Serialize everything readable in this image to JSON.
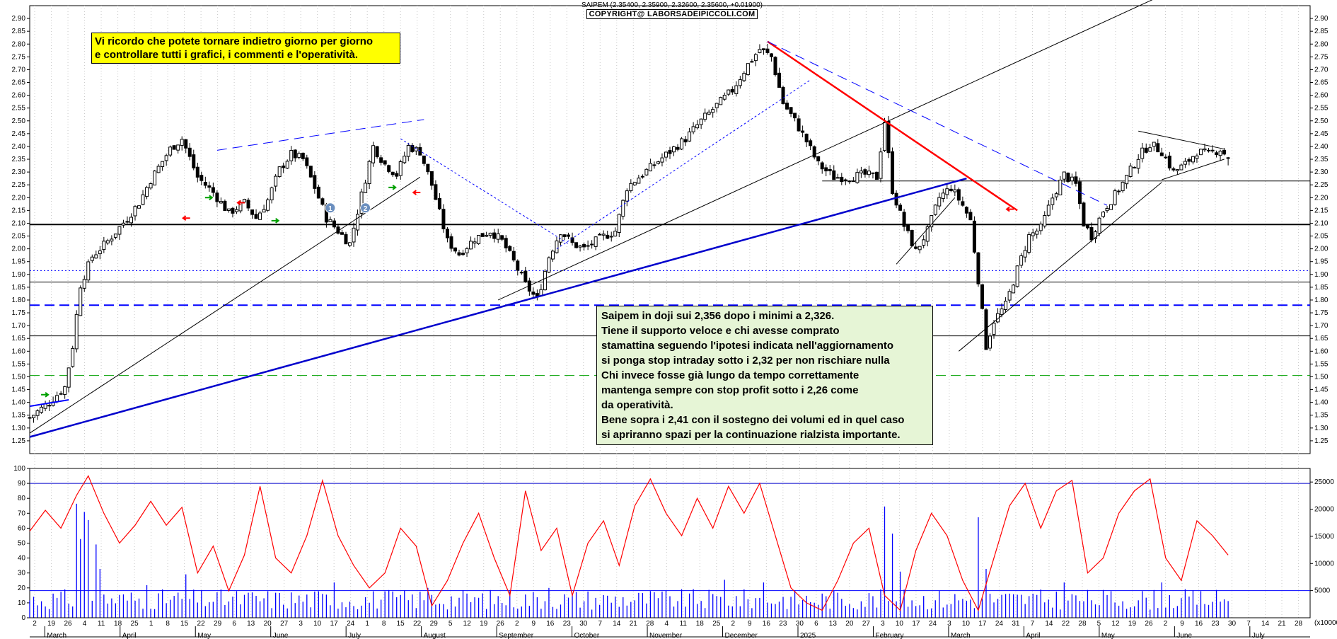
{
  "header": {
    "title": "SAIPEM (2.35400, 2.35900, 2.32600, 2.35600, +0.01900)",
    "copyright": "COPYRIGHT@ LABORSADEIPICCOLI.COM"
  },
  "notes": {
    "yellow": [
      "Vi ricordo che potete tornare indietro giorno per giorno",
      "e controllare tutti i grafici, i commenti e l'operatività."
    ],
    "green": [
      "Saipem in doji sui 2,356 dopo i minimi a 2,326.",
      "Tiene il supporto veloce e chi avesse comprato",
      "stamattina seguendo l'ipotesi indicata nell'aggiornamento",
      "si ponga stop intraday sotto i 2,32 per non rischiare nulla",
      "Chi invece fosse già lungo da tempo correttamente",
      "mantenga sempre con stop profit sotto i 2,26 come",
      "da operatività.",
      "Bene sopra i 2,41 con il sostegno dei volumi ed in quel caso",
      "si apriranno spazi per la continuazione rialzista importante."
    ]
  },
  "markers": [
    "1",
    "2"
  ],
  "colors": {
    "price": "#000000",
    "trend_blue": "#0000cc",
    "trend_red": "#ff0000",
    "dashed_blue": "#0000ff",
    "dashed_green": "#00a000",
    "oscillator": "#ff0000",
    "volume": "#0000ff",
    "marker": "#6b8fbf",
    "arrow_green": "#00a000",
    "arrow_red": "#ff0000"
  },
  "chart_data": [
    {
      "type": "candlestick",
      "ylim": [
        1.2,
        2.95
      ],
      "y_ticks": [
        "2.90",
        "2.85",
        "2.80",
        "2.75",
        "2.70",
        "2.65",
        "2.60",
        "2.55",
        "2.50",
        "2.45",
        "2.40",
        "2.35",
        "2.30",
        "2.25",
        "2.20",
        "2.15",
        "2.10",
        "2.05",
        "2.00",
        "1.95",
        "1.90",
        "1.85",
        "1.80",
        "1.75",
        "1.70",
        "1.65",
        "1.60",
        "1.55",
        "1.50",
        "1.45",
        "1.40",
        "1.35",
        "1.30",
        "1.25"
      ],
      "x_day_ticks": [
        "2",
        "19",
        "26",
        "4",
        "11",
        "18",
        "25",
        "1",
        "8",
        "15",
        "22",
        "29",
        "6",
        "13",
        "20",
        "27",
        "3",
        "10",
        "17",
        "24",
        "1",
        "8",
        "15",
        "22",
        "29",
        "5",
        "12",
        "19",
        "26",
        "2",
        "9",
        "16",
        "23",
        "30",
        "7",
        "14",
        "21",
        "28",
        "4",
        "11",
        "18",
        "25",
        "2",
        "9",
        "16",
        "23",
        "30",
        "6",
        "13",
        "20",
        "27",
        "3",
        "10",
        "17",
        "24",
        "3",
        "10",
        "17",
        "24",
        "31",
        "7",
        "14",
        "22",
        "28",
        "5",
        "12",
        "19",
        "26",
        "2",
        "9",
        "16",
        "23",
        "30",
        "7",
        "14",
        "21",
        "28"
      ],
      "x_month_labels": [
        "March",
        "April",
        "May",
        "June",
        "July",
        "August",
        "September",
        "October",
        "November",
        "December",
        "2025",
        "February",
        "March",
        "April",
        "May",
        "June",
        "July"
      ],
      "last_bar": {
        "open": 2.354,
        "high": 2.359,
        "low": 2.326,
        "close": 2.356,
        "change": 0.019
      },
      "close_path": [
        {
          "t": 0,
          "c": 1.34
        },
        {
          "t": 5,
          "c": 1.4
        },
        {
          "t": 9,
          "c": 1.46
        },
        {
          "t": 11,
          "c": 1.62
        },
        {
          "t": 13,
          "c": 1.86
        },
        {
          "t": 16,
          "c": 1.97
        },
        {
          "t": 20,
          "c": 2.03
        },
        {
          "t": 25,
          "c": 2.12
        },
        {
          "t": 28,
          "c": 2.18
        },
        {
          "t": 31,
          "c": 2.27
        },
        {
          "t": 36,
          "c": 2.39
        },
        {
          "t": 39,
          "c": 2.43
        },
        {
          "t": 43,
          "c": 2.28
        },
        {
          "t": 47,
          "c": 2.22
        },
        {
          "t": 51,
          "c": 2.14
        },
        {
          "t": 55,
          "c": 2.18
        },
        {
          "t": 58,
          "c": 2.12
        },
        {
          "t": 61,
          "c": 2.19
        },
        {
          "t": 64,
          "c": 2.31
        },
        {
          "t": 67,
          "c": 2.37
        },
        {
          "t": 70,
          "c": 2.35
        },
        {
          "t": 73,
          "c": 2.24
        },
        {
          "t": 76,
          "c": 2.12
        },
        {
          "t": 79,
          "c": 2.07
        },
        {
          "t": 82,
          "c": 2.02
        },
        {
          "t": 85,
          "c": 2.21
        },
        {
          "t": 88,
          "c": 2.4
        },
        {
          "t": 91,
          "c": 2.33
        },
        {
          "t": 94,
          "c": 2.29
        },
        {
          "t": 97,
          "c": 2.4
        },
        {
          "t": 100,
          "c": 2.38
        },
        {
          "t": 103,
          "c": 2.25
        },
        {
          "t": 105,
          "c": 2.14
        },
        {
          "t": 107,
          "c": 2.03
        },
        {
          "t": 110,
          "c": 1.98
        },
        {
          "t": 114,
          "c": 2.04
        },
        {
          "t": 118,
          "c": 2.07
        },
        {
          "t": 121,
          "c": 2.03
        },
        {
          "t": 124,
          "c": 1.95
        },
        {
          "t": 127,
          "c": 1.86
        },
        {
          "t": 130,
          "c": 1.8
        },
        {
          "t": 133,
          "c": 1.97
        },
        {
          "t": 136,
          "c": 2.07
        },
        {
          "t": 139,
          "c": 2.02
        },
        {
          "t": 142,
          "c": 2.0
        },
        {
          "t": 146,
          "c": 2.04
        },
        {
          "t": 150,
          "c": 2.07
        },
        {
          "t": 153,
          "c": 2.24
        },
        {
          "t": 156,
          "c": 2.28
        },
        {
          "t": 160,
          "c": 2.33
        },
        {
          "t": 164,
          "c": 2.38
        },
        {
          "t": 168,
          "c": 2.43
        },
        {
          "t": 172,
          "c": 2.5
        },
        {
          "t": 176,
          "c": 2.56
        },
        {
          "t": 180,
          "c": 2.62
        },
        {
          "t": 184,
          "c": 2.72
        },
        {
          "t": 187,
          "c": 2.78
        },
        {
          "t": 190,
          "c": 2.75
        },
        {
          "t": 193,
          "c": 2.57
        },
        {
          "t": 196,
          "c": 2.5
        },
        {
          "t": 199,
          "c": 2.42
        },
        {
          "t": 202,
          "c": 2.33
        },
        {
          "t": 206,
          "c": 2.28
        },
        {
          "t": 210,
          "c": 2.28
        },
        {
          "t": 214,
          "c": 2.29
        },
        {
          "t": 217,
          "c": 2.28
        },
        {
          "t": 219,
          "c": 2.5
        },
        {
          "t": 221,
          "c": 2.23
        },
        {
          "t": 224,
          "c": 2.09
        },
        {
          "t": 227,
          "c": 1.99
        },
        {
          "t": 230,
          "c": 2.07
        },
        {
          "t": 233,
          "c": 2.2
        },
        {
          "t": 236,
          "c": 2.24
        },
        {
          "t": 239,
          "c": 2.17
        },
        {
          "t": 241,
          "c": 2.11
        },
        {
          "t": 243,
          "c": 1.88
        },
        {
          "t": 245,
          "c": 1.62
        },
        {
          "t": 247,
          "c": 1.72
        },
        {
          "t": 250,
          "c": 1.78
        },
        {
          "t": 253,
          "c": 1.92
        },
        {
          "t": 256,
          "c": 2.05
        },
        {
          "t": 259,
          "c": 2.08
        },
        {
          "t": 262,
          "c": 2.2
        },
        {
          "t": 265,
          "c": 2.29
        },
        {
          "t": 268,
          "c": 2.25
        },
        {
          "t": 270,
          "c": 2.1
        },
        {
          "t": 272,
          "c": 2.05
        },
        {
          "t": 275,
          "c": 2.15
        },
        {
          "t": 278,
          "c": 2.21
        },
        {
          "t": 281,
          "c": 2.28
        },
        {
          "t": 284,
          "c": 2.36
        },
        {
          "t": 287,
          "c": 2.41
        },
        {
          "t": 290,
          "c": 2.38
        },
        {
          "t": 293,
          "c": 2.3
        },
        {
          "t": 296,
          "c": 2.33
        },
        {
          "t": 299,
          "c": 2.38
        },
        {
          "t": 302,
          "c": 2.37
        },
        {
          "t": 305,
          "c": 2.39
        },
        {
          "t": 307,
          "c": 2.356
        }
      ],
      "horizontal_levels": [
        {
          "value": 2.095,
          "style": "solid",
          "color": "#000000",
          "width": 2
        },
        {
          "value": 2.265,
          "style": "solid",
          "color": "#000000",
          "width": 1,
          "from_t": 203
        },
        {
          "value": 1.915,
          "style": "dotted",
          "color": "#0000ff",
          "width": 1
        },
        {
          "value": 1.87,
          "style": "solid",
          "color": "#000000",
          "width": 1
        },
        {
          "value": 1.78,
          "style": "dashed",
          "color": "#0000ff",
          "width": 2
        },
        {
          "value": 1.66,
          "style": "solid",
          "color": "#000000",
          "width": 1
        },
        {
          "value": 1.505,
          "style": "dashed",
          "color": "#00a000",
          "width": 1
        }
      ],
      "trendlines": [
        {
          "from": [
            0,
            1.265
          ],
          "to": [
            240,
            2.275
          ],
          "color": "#0000cc",
          "width": 2.5,
          "style": "solid"
        },
        {
          "from": [
            0,
            1.28
          ],
          "to": [
            100,
            2.28
          ],
          "color": "#000000",
          "width": 1,
          "style": "solid"
        },
        {
          "from": [
            120,
            1.8
          ],
          "to": [
            290,
            2.99
          ],
          "color": "#000000",
          "width": 1,
          "style": "solid"
        },
        {
          "from": [
            189,
            2.81
          ],
          "to": [
            253,
            2.15
          ],
          "color": "#ff0000",
          "width": 2.5,
          "style": "solid"
        },
        {
          "from": [
            189,
            2.81
          ],
          "to": [
            276,
            2.17
          ],
          "color": "#0000ff",
          "width": 1,
          "style": "dashed"
        },
        {
          "from": [
            135,
            2.0
          ],
          "to": [
            200,
            2.66
          ],
          "color": "#0000ff",
          "width": 1,
          "style": "dotted"
        },
        {
          "from": [
            95,
            2.43
          ],
          "to": [
            138,
            2.02
          ],
          "color": "#0000ff",
          "width": 1,
          "style": "dotted"
        },
        {
          "from": [
            48,
            2.385
          ],
          "to": [
            101,
            2.505
          ],
          "color": "#0000ff",
          "width": 1,
          "style": "dashed"
        },
        {
          "from": [
            0,
            1.385
          ],
          "to": [
            10,
            1.41
          ],
          "color": "#0000ff",
          "width": 2,
          "style": "solid"
        },
        {
          "from": [
            222,
            1.94
          ],
          "to": [
            237,
            2.2
          ],
          "color": "#000000",
          "width": 1,
          "style": "solid"
        },
        {
          "from": [
            238,
            1.6
          ],
          "to": [
            290,
            2.26
          ],
          "color": "#000000",
          "width": 1,
          "style": "solid"
        },
        {
          "from": [
            284,
            2.46
          ],
          "to": [
            306,
            2.39
          ],
          "color": "#000000",
          "width": 1,
          "style": "solid"
        },
        {
          "from": [
            290,
            2.27
          ],
          "to": [
            306,
            2.35
          ],
          "color": "#000000",
          "width": 1,
          "style": "solid"
        }
      ]
    },
    {
      "type": "line",
      "name": "oscillator",
      "ylim": [
        0,
        100
      ],
      "y_ticks": [
        "100",
        "90",
        "80",
        "70",
        "60",
        "50",
        "40",
        "30",
        "20",
        "10",
        "0"
      ],
      "reference_line": 90,
      "points": [
        {
          "t": 0,
          "v": 58
        },
        {
          "t": 4,
          "v": 72
        },
        {
          "t": 8,
          "v": 60
        },
        {
          "t": 12,
          "v": 82
        },
        {
          "t": 15,
          "v": 95
        },
        {
          "t": 19,
          "v": 70
        },
        {
          "t": 23,
          "v": 50
        },
        {
          "t": 27,
          "v": 62
        },
        {
          "t": 31,
          "v": 78
        },
        {
          "t": 35,
          "v": 62
        },
        {
          "t": 39,
          "v": 74
        },
        {
          "t": 43,
          "v": 30
        },
        {
          "t": 47,
          "v": 48
        },
        {
          "t": 51,
          "v": 18
        },
        {
          "t": 55,
          "v": 42
        },
        {
          "t": 59,
          "v": 88
        },
        {
          "t": 63,
          "v": 40
        },
        {
          "t": 67,
          "v": 30
        },
        {
          "t": 71,
          "v": 55
        },
        {
          "t": 75,
          "v": 92
        },
        {
          "t": 79,
          "v": 55
        },
        {
          "t": 83,
          "v": 35
        },
        {
          "t": 87,
          "v": 20
        },
        {
          "t": 91,
          "v": 30
        },
        {
          "t": 95,
          "v": 60
        },
        {
          "t": 99,
          "v": 48
        },
        {
          "t": 103,
          "v": 8
        },
        {
          "t": 107,
          "v": 25
        },
        {
          "t": 111,
          "v": 50
        },
        {
          "t": 115,
          "v": 70
        },
        {
          "t": 119,
          "v": 40
        },
        {
          "t": 123,
          "v": 15
        },
        {
          "t": 127,
          "v": 85
        },
        {
          "t": 131,
          "v": 45
        },
        {
          "t": 135,
          "v": 60
        },
        {
          "t": 139,
          "v": 15
        },
        {
          "t": 143,
          "v": 50
        },
        {
          "t": 147,
          "v": 65
        },
        {
          "t": 151,
          "v": 35
        },
        {
          "t": 155,
          "v": 75
        },
        {
          "t": 159,
          "v": 93
        },
        {
          "t": 163,
          "v": 70
        },
        {
          "t": 167,
          "v": 55
        },
        {
          "t": 171,
          "v": 80
        },
        {
          "t": 175,
          "v": 60
        },
        {
          "t": 179,
          "v": 88
        },
        {
          "t": 183,
          "v": 70
        },
        {
          "t": 187,
          "v": 90
        },
        {
          "t": 191,
          "v": 55
        },
        {
          "t": 195,
          "v": 20
        },
        {
          "t": 199,
          "v": 10
        },
        {
          "t": 203,
          "v": 5
        },
        {
          "t": 207,
          "v": 25
        },
        {
          "t": 211,
          "v": 50
        },
        {
          "t": 215,
          "v": 60
        },
        {
          "t": 219,
          "v": 15
        },
        {
          "t": 223,
          "v": 5
        },
        {
          "t": 227,
          "v": 45
        },
        {
          "t": 231,
          "v": 70
        },
        {
          "t": 235,
          "v": 55
        },
        {
          "t": 239,
          "v": 25
        },
        {
          "t": 243,
          "v": 5
        },
        {
          "t": 247,
          "v": 40
        },
        {
          "t": 251,
          "v": 75
        },
        {
          "t": 255,
          "v": 90
        },
        {
          "t": 259,
          "v": 60
        },
        {
          "t": 263,
          "v": 85
        },
        {
          "t": 267,
          "v": 92
        },
        {
          "t": 271,
          "v": 30
        },
        {
          "t": 275,
          "v": 40
        },
        {
          "t": 279,
          "v": 70
        },
        {
          "t": 283,
          "v": 85
        },
        {
          "t": 287,
          "v": 93
        },
        {
          "t": 291,
          "v": 40
        },
        {
          "t": 295,
          "v": 25
        },
        {
          "t": 299,
          "v": 65
        },
        {
          "t": 303,
          "v": 55
        },
        {
          "t": 307,
          "v": 42
        }
      ]
    },
    {
      "type": "bar",
      "name": "volume",
      "ylim": [
        0,
        27500
      ],
      "y_ticks": [
        "25000",
        "20000",
        "15000",
        "10000",
        "5000"
      ],
      "unit_label": "(x10000)",
      "reference_line": 5000,
      "bars_by_t": {
        "12": 21000,
        "14": 19500,
        "15": 18000,
        "17": 13500,
        "13": 14500,
        "18": 9000,
        "30": 6000,
        "40": 8000,
        "78": 6500,
        "102": 5500,
        "133": 5500,
        "178": 7000,
        "188": 6500,
        "219": 20500,
        "221": 15500,
        "223": 8500,
        "243": 18500,
        "245": 9000,
        "265": 6500,
        "290": 6500
      }
    }
  ]
}
